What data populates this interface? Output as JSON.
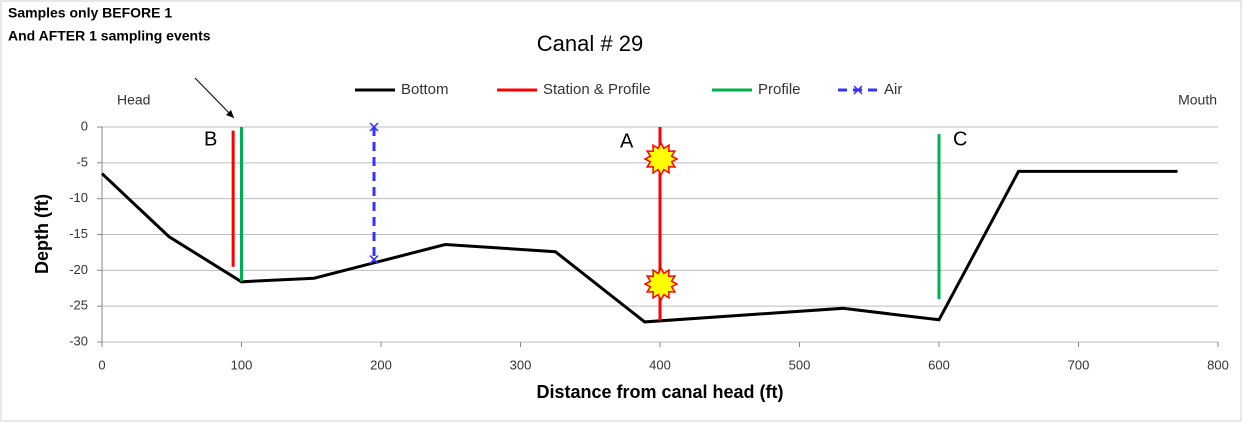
{
  "chart_data": {
    "type": "line",
    "title": "Canal # 29",
    "xlabel": "Distance from canal head (ft)",
    "ylabel": "Depth (ft)",
    "annotations": [
      "Samples only BEFORE 1",
      "And AFTER 1 sampling events",
      "Head",
      "Mouth",
      "B",
      "A",
      "C"
    ],
    "xlim": [
      0,
      800
    ],
    "xticks": [
      0,
      100,
      200,
      300,
      400,
      500,
      600,
      700,
      800
    ],
    "ylim": [
      -30,
      0
    ],
    "yticks": [
      -30,
      -25,
      -20,
      -15,
      -10,
      -5,
      0
    ],
    "grid": true,
    "legend": "top",
    "series": [
      {
        "name": "Bottom",
        "color": "#000000",
        "x": [
          0,
          48,
          100,
          152,
          246,
          325,
          389,
          531,
          600,
          657,
          771
        ],
        "values": [
          -6.5,
          -15.3,
          -21.6,
          -21.1,
          -16.4,
          -17.4,
          -27.2,
          -25.3,
          -26.9,
          -6.2,
          -6.2
        ]
      },
      {
        "name": "Station & Profile",
        "color": "#ff0000",
        "x": [
          94,
          94,
          94,
          400,
          400
        ],
        "values": [
          -0.5,
          -19.5,
          null,
          0,
          -27
        ]
      },
      {
        "name": "Profile",
        "color": "#00b050",
        "x": [
          100,
          100,
          100,
          600,
          600
        ],
        "values": [
          0,
          -21.5,
          null,
          -1,
          -24
        ]
      },
      {
        "name": "Air",
        "color": "#3333ff",
        "dashed": true,
        "marker": "x",
        "x": [
          195,
          195
        ],
        "values": [
          0,
          -18.5
        ]
      }
    ]
  }
}
